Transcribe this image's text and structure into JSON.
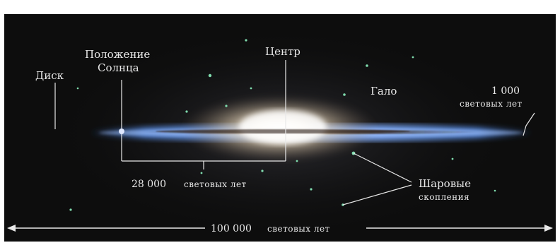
{
  "labels": {
    "disk": "Диск",
    "sun_line1": "Положение",
    "sun_line2": "Солнца",
    "center": "Центр",
    "halo": "Гало",
    "thickness_value": "1 000",
    "thickness_unit": "световых лет",
    "sun_distance_value": "28 000",
    "sun_distance_unit": "световых лет",
    "clusters_line1": "Шаровые",
    "clusters_line2": "скопления",
    "diameter_value": "100 000",
    "diameter_unit": "световых лет"
  },
  "colors": {
    "background": "#0d0d0d",
    "disk": "#3f6fb8",
    "bulge": "#fff6e6",
    "stars": "#7fdcae",
    "text": "#e8e8e8"
  }
}
